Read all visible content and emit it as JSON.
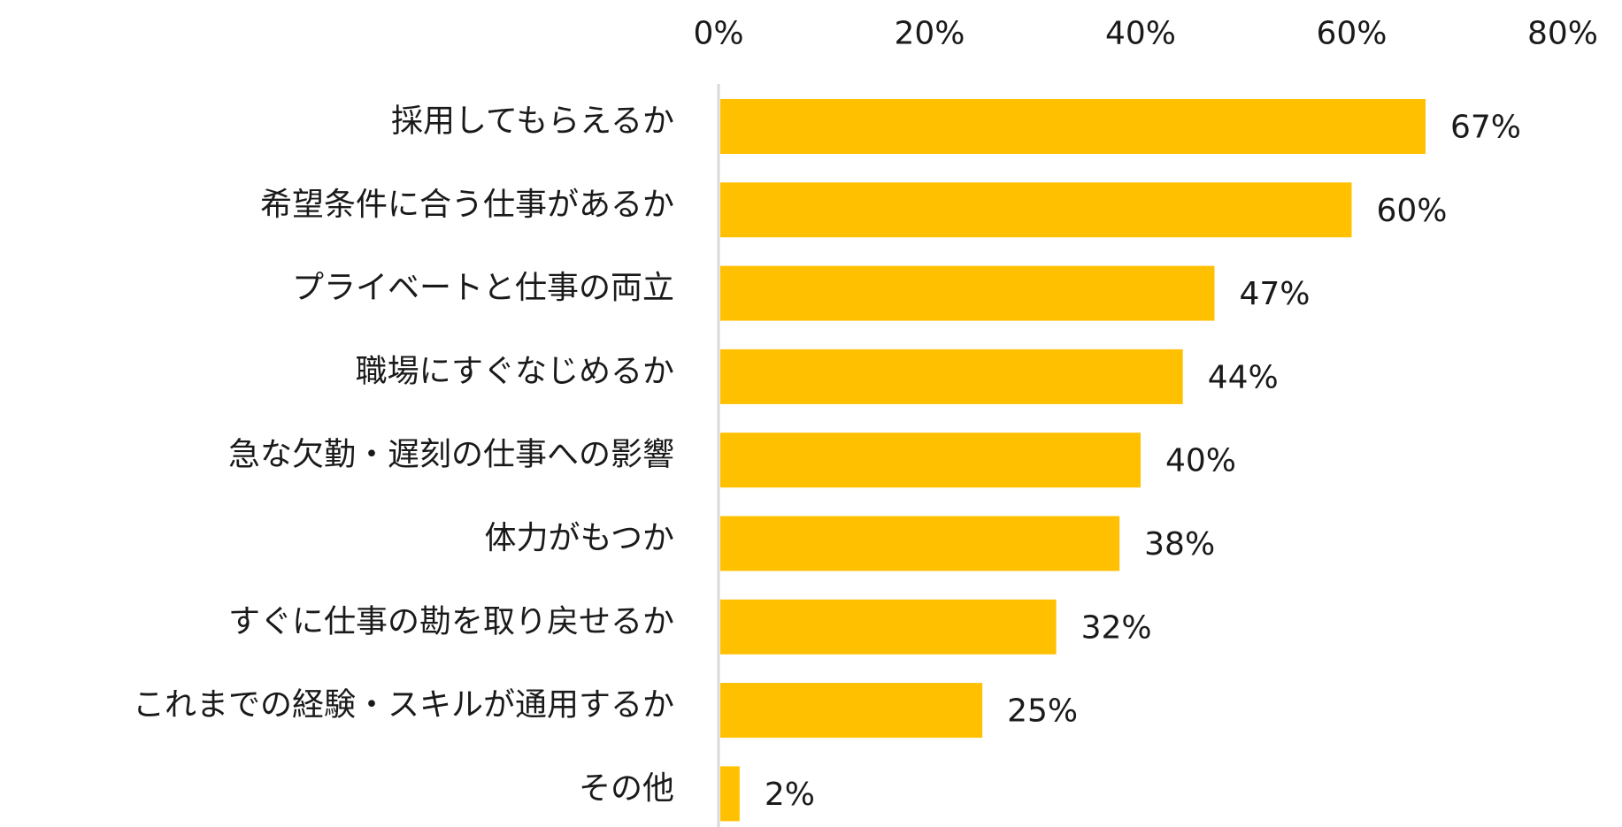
{
  "chart_data": {
    "type": "bar",
    "orientation": "horizontal",
    "categories": [
      "採用してもらえるか",
      "希望条件に合う仕事があるか",
      "プライベートと仕事の両立",
      "職場にすぐなじめるか",
      "急な欠勤・遅刻の仕事への影響",
      "体力がもつか",
      "すぐに仕事の勘を取り戻せるか",
      "これまでの経験・スキルが通用するか",
      "その他"
    ],
    "values": [
      67,
      60,
      47,
      44,
      40,
      38,
      32,
      25,
      2
    ],
    "value_labels": [
      "67%",
      "60%",
      "47%",
      "44%",
      "40%",
      "38%",
      "32%",
      "25%",
      "2%"
    ],
    "xlim": [
      0,
      80
    ],
    "x_ticks": [
      0,
      20,
      40,
      60,
      80
    ],
    "x_tick_labels": [
      "0%",
      "20%",
      "40%",
      "60%",
      "80%"
    ],
    "x_axis_position": "top",
    "bar_color": "#FFC000",
    "axis_color": "#D9D9D9",
    "grid": false,
    "legend": false
  }
}
